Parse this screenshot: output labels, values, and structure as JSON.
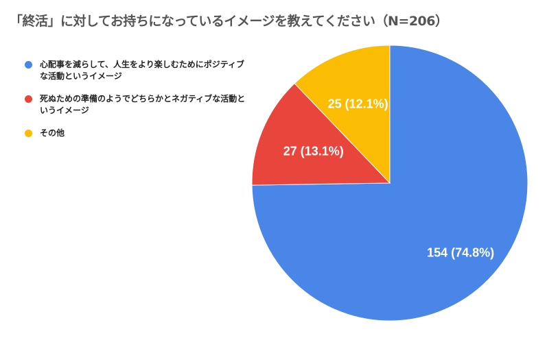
{
  "chart_data": {
    "type": "pie",
    "title": "「終活」に対してお持ちになっているイメージを教えてください（N=206）",
    "slices": [
      {
        "name": "心配事を減らして、人生をより楽しむためにポジティブな活動というイメージ",
        "value": 154,
        "percent": 74.8,
        "label": "154 (74.8%)",
        "color": "#4a86e8"
      },
      {
        "name": "死ぬための準備のようでどちらかとネガティブな活動というイメージ",
        "value": 27,
        "percent": 13.1,
        "label": "27 (13.1%)",
        "color": "#e8453c"
      },
      {
        "name": "その他",
        "value": 25,
        "percent": 12.1,
        "label": "25 (12.1%)",
        "color": "#fbbc04"
      }
    ],
    "legend_position": "left"
  }
}
